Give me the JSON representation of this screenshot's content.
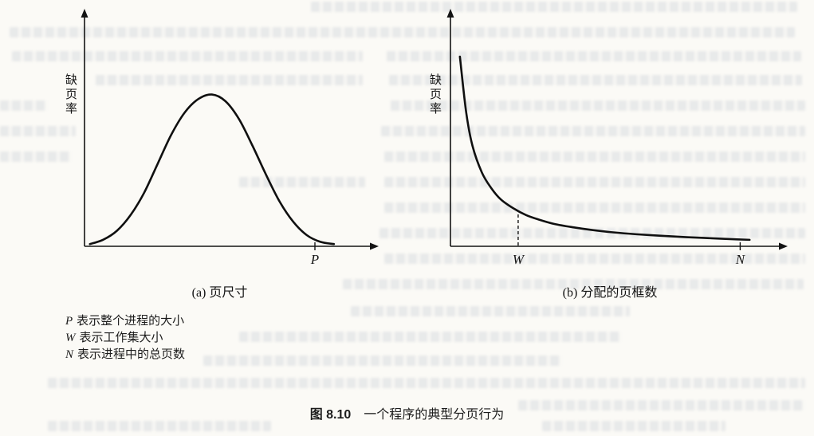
{
  "figure": {
    "caption_label": "图 8.10",
    "caption_text": "一个程序的典型分页行为",
    "notes": [
      {
        "symbol": "P",
        "text": "表示整个进程的大小"
      },
      {
        "symbol": "W",
        "text": "表示工作集大小"
      },
      {
        "symbol": "N",
        "text": "表示进程中的总页数"
      }
    ]
  },
  "chart_data": [
    {
      "id": "a",
      "type": "line",
      "title": "(a) 页尺寸",
      "xlabel": "页尺寸",
      "ylabel": "缺页率",
      "x_range": [
        0,
        1
      ],
      "y_range": [
        0,
        1
      ],
      "grid": false,
      "curve_shape": "bell",
      "points": [
        [
          0.02,
          0.01
        ],
        [
          0.07,
          0.03
        ],
        [
          0.12,
          0.07
        ],
        [
          0.17,
          0.14
        ],
        [
          0.22,
          0.24
        ],
        [
          0.27,
          0.37
        ],
        [
          0.32,
          0.5
        ],
        [
          0.37,
          0.6
        ],
        [
          0.42,
          0.66
        ],
        [
          0.47,
          0.68
        ],
        [
          0.52,
          0.65
        ],
        [
          0.57,
          0.57
        ],
        [
          0.62,
          0.45
        ],
        [
          0.67,
          0.32
        ],
        [
          0.72,
          0.2
        ],
        [
          0.77,
          0.11
        ],
        [
          0.82,
          0.05
        ],
        [
          0.87,
          0.02
        ],
        [
          0.92,
          0.01
        ]
      ],
      "markers": [
        {
          "label": "P",
          "x": 0.85,
          "style": "tick"
        }
      ]
    },
    {
      "id": "b",
      "type": "line",
      "title": "(b) 分配的页框数",
      "xlabel": "分配的页框数",
      "ylabel": "缺页率",
      "x_range": [
        0,
        1
      ],
      "y_range": [
        0,
        1
      ],
      "grid": false,
      "curve_shape": "hyperbolic-decay",
      "points": [
        [
          0.03,
          0.85
        ],
        [
          0.05,
          0.6
        ],
        [
          0.07,
          0.45
        ],
        [
          0.1,
          0.33
        ],
        [
          0.13,
          0.26
        ],
        [
          0.16,
          0.21
        ],
        [
          0.2,
          0.17
        ],
        [
          0.24,
          0.14
        ],
        [
          0.28,
          0.12
        ],
        [
          0.33,
          0.1
        ],
        [
          0.39,
          0.085
        ],
        [
          0.45,
          0.073
        ],
        [
          0.52,
          0.062
        ],
        [
          0.59,
          0.054
        ],
        [
          0.67,
          0.047
        ],
        [
          0.75,
          0.041
        ],
        [
          0.83,
          0.036
        ],
        [
          0.91,
          0.031
        ],
        [
          0.95,
          0.029
        ]
      ],
      "markers": [
        {
          "label": "W",
          "x": 0.215,
          "style": "dashed-to-curve"
        },
        {
          "label": "N",
          "x": 0.92,
          "style": "tick"
        }
      ]
    }
  ]
}
